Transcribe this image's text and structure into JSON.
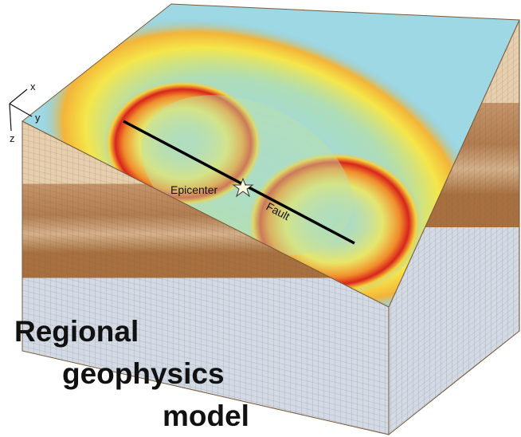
{
  "axes": {
    "x": "x",
    "y": "y",
    "z": "z"
  },
  "labels": {
    "epicenter": "Epicenter",
    "fault": "Fault"
  },
  "caption": [
    "Regional",
    "geophysics",
    "model"
  ]
}
